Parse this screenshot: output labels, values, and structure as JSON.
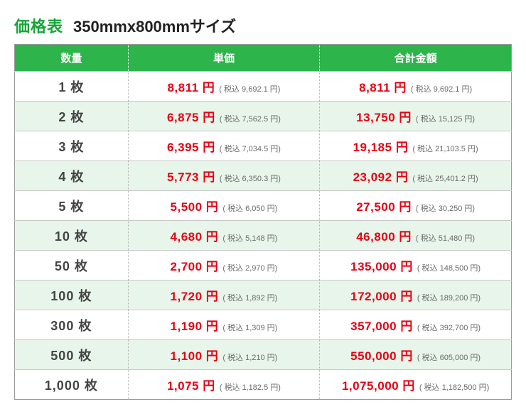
{
  "colors": {
    "header_bg": "#2db44b",
    "header_text": "#ffffff",
    "title_green": "#16a538",
    "title_black": "#222222",
    "row_even_bg": "#e8f5ea",
    "row_odd_bg": "#ffffff",
    "price_red": "#e60012",
    "qty_text": "#444444",
    "tax_text": "#6b6b6b",
    "border": "#9a9a9a",
    "row_border": "#c9c9c9"
  },
  "title": {
    "label": "価格表",
    "size": "350mmx800mmサイズ"
  },
  "table": {
    "headers": {
      "qty": "数量",
      "unit": "単価",
      "total": "合計金額"
    },
    "yen": "円",
    "tax_prefix": "( 税込 ",
    "tax_suffix": " 円)",
    "qty_suffix": " 枚",
    "rows": [
      {
        "qty": "1",
        "unit": "8,811",
        "unit_tax": "9,692.1",
        "total": "8,811",
        "total_tax": "9,692.1"
      },
      {
        "qty": "2",
        "unit": "6,875",
        "unit_tax": "7,562.5",
        "total": "13,750",
        "total_tax": "15,125"
      },
      {
        "qty": "3",
        "unit": "6,395",
        "unit_tax": "7,034.5",
        "total": "19,185",
        "total_tax": "21,103.5"
      },
      {
        "qty": "4",
        "unit": "5,773",
        "unit_tax": "6,350.3",
        "total": "23,092",
        "total_tax": "25,401.2"
      },
      {
        "qty": "5",
        "unit": "5,500",
        "unit_tax": "6,050",
        "total": "27,500",
        "total_tax": "30,250"
      },
      {
        "qty": "10",
        "unit": "4,680",
        "unit_tax": "5,148",
        "total": "46,800",
        "total_tax": "51,480"
      },
      {
        "qty": "50",
        "unit": "2,700",
        "unit_tax": "2,970",
        "total": "135,000",
        "total_tax": "148,500"
      },
      {
        "qty": "100",
        "unit": "1,720",
        "unit_tax": "1,892",
        "total": "172,000",
        "total_tax": "189,200"
      },
      {
        "qty": "300",
        "unit": "1,190",
        "unit_tax": "1,309",
        "total": "357,000",
        "total_tax": "392,700"
      },
      {
        "qty": "500",
        "unit": "1,100",
        "unit_tax": "1,210",
        "total": "550,000",
        "total_tax": "605,000"
      },
      {
        "qty": "1,000",
        "unit": "1,075",
        "unit_tax": "1,182.5",
        "total": "1,075,000",
        "total_tax": "1,182,500"
      }
    ]
  }
}
